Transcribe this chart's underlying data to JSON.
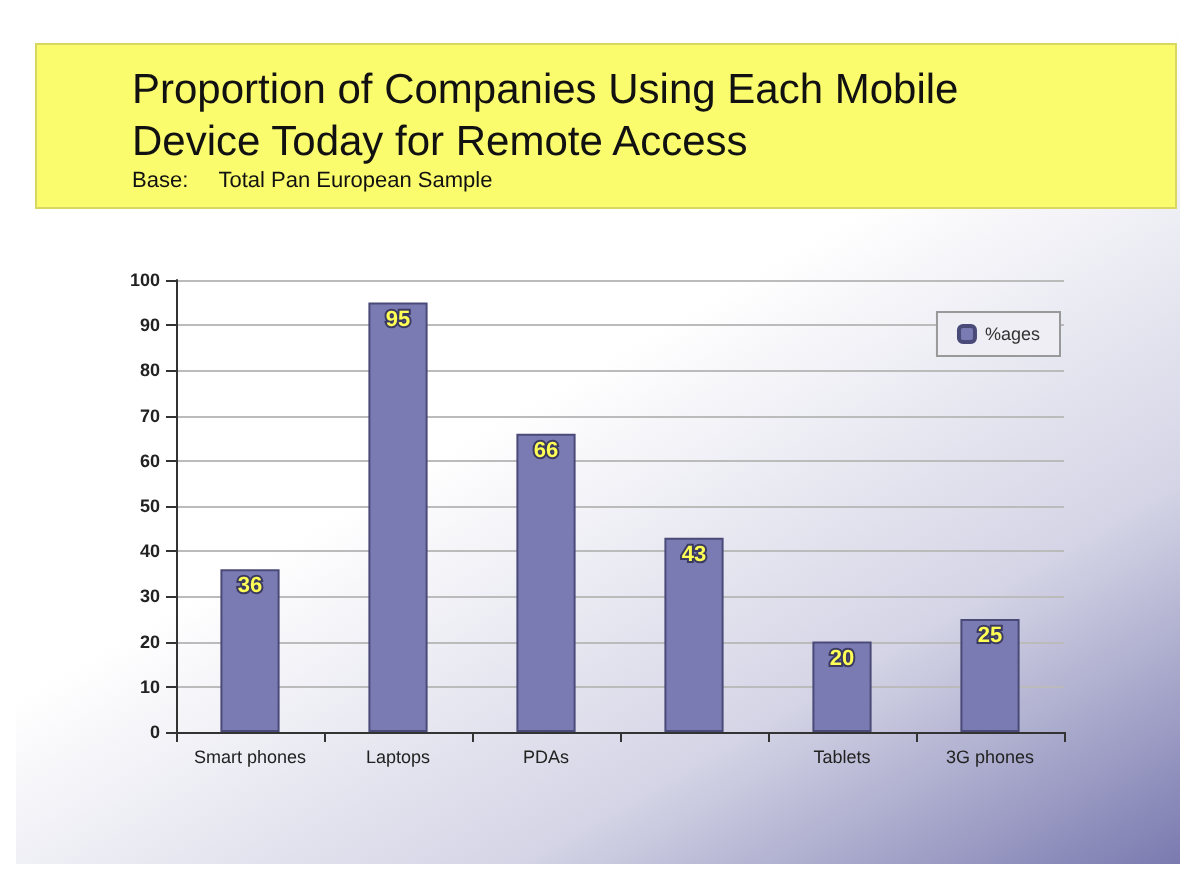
{
  "chart_data": {
    "type": "bar",
    "title": "Proportion of Companies Using Each Mobile\nDevice Today for Remote Access",
    "subtitle": "Base:     Total Pan European Sample",
    "categories": [
      "Smart phones",
      "Laptops",
      "PDAs",
      null,
      "Tablets",
      "3G phones"
    ],
    "series": [
      {
        "name": "%ages",
        "color": "#7b7bb3",
        "values": [
          36,
          95,
          66,
          43,
          20,
          25
        ]
      }
    ],
    "ylim": [
      0,
      100
    ],
    "yticks": [
      0,
      10,
      20,
      30,
      40,
      50,
      60,
      70,
      80,
      90,
      100
    ],
    "grid": "y",
    "legend": "top right",
    "data_labels": true
  }
}
